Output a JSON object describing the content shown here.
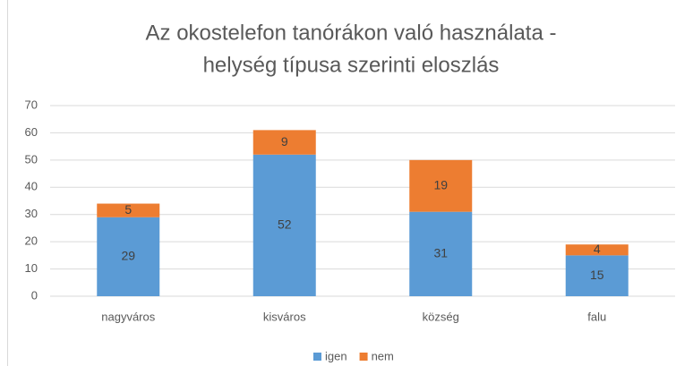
{
  "chart_data": {
    "type": "stacked_bar",
    "title": [
      "Az okostelefon tanórákon való használata -",
      "helység típusa szerinti eloszlás"
    ],
    "categories": [
      "nagyváros",
      "kisváros",
      "község",
      "falu"
    ],
    "series": [
      {
        "name": "igen",
        "color": "#5b9bd5",
        "values": [
          29,
          52,
          31,
          15
        ]
      },
      {
        "name": "nem",
        "color": "#ed7d31",
        "values": [
          5,
          9,
          19,
          4
        ]
      }
    ],
    "ylim": [
      0,
      70
    ],
    "yticks": [
      0,
      10,
      20,
      30,
      40,
      50,
      60,
      70
    ],
    "grid": true,
    "legend": "bottom"
  }
}
